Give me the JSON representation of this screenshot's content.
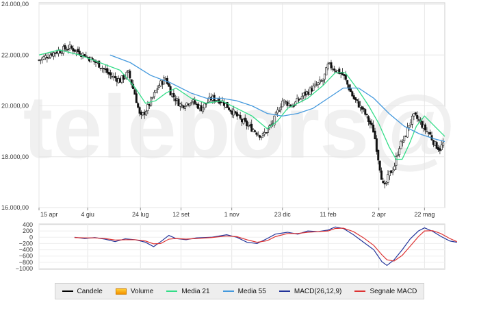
{
  "chart_data": [
    {
      "type": "candlestick",
      "panel": "price",
      "watermark": "telebors@",
      "ylim": [
        16000,
        24000
      ],
      "y_ticks": [
        16000,
        18000,
        20000,
        22000,
        24000
      ],
      "y_tick_labels": [
        "16.000,00",
        "18.000,00",
        "20.000,00",
        "22.000,00",
        "24.000,00"
      ],
      "x_range": [
        0,
        400
      ],
      "x_ticks": [
        {
          "x": 0,
          "label": "15 apr"
        },
        {
          "x": 48,
          "label": "4 giu"
        },
        {
          "x": 100,
          "label": "24 lug"
        },
        {
          "x": 140,
          "label": "12 set"
        },
        {
          "x": 190,
          "label": "1 nov"
        },
        {
          "x": 240,
          "label": "23 dic"
        },
        {
          "x": 285,
          "label": "11 feb"
        },
        {
          "x": 335,
          "label": "2 apr"
        },
        {
          "x": 380,
          "label": "22 mag"
        }
      ],
      "grid": true,
      "close_trend": [
        [
          0,
          21800
        ],
        [
          15,
          22100
        ],
        [
          30,
          22300
        ],
        [
          45,
          22000
        ],
        [
          60,
          21600
        ],
        [
          70,
          21200
        ],
        [
          80,
          21000
        ],
        [
          88,
          21300
        ],
        [
          95,
          20400
        ],
        [
          100,
          19500
        ],
        [
          108,
          20000
        ],
        [
          118,
          20800
        ],
        [
          125,
          21100
        ],
        [
          130,
          20500
        ],
        [
          140,
          20000
        ],
        [
          150,
          20200
        ],
        [
          160,
          19900
        ],
        [
          170,
          20300
        ],
        [
          180,
          20200
        ],
        [
          190,
          19800
        ],
        [
          200,
          19400
        ],
        [
          210,
          19100
        ],
        [
          220,
          18800
        ],
        [
          230,
          19300
        ],
        [
          240,
          20200
        ],
        [
          250,
          20000
        ],
        [
          260,
          20400
        ],
        [
          270,
          20700
        ],
        [
          280,
          21000
        ],
        [
          285,
          21600
        ],
        [
          290,
          21500
        ],
        [
          300,
          21200
        ],
        [
          310,
          20300
        ],
        [
          320,
          19800
        ],
        [
          330,
          19000
        ],
        [
          335,
          17800
        ],
        [
          340,
          16700
        ],
        [
          345,
          17300
        ],
        [
          350,
          17600
        ],
        [
          355,
          18400
        ],
        [
          360,
          18700
        ],
        [
          365,
          19300
        ],
        [
          370,
          19600
        ],
        [
          375,
          19400
        ],
        [
          380,
          19100
        ],
        [
          385,
          18900
        ],
        [
          390,
          18500
        ],
        [
          395,
          18300
        ],
        [
          400,
          18600
        ]
      ],
      "series": [
        {
          "name": "Media 21",
          "color": "#33dd88",
          "values": [
            [
              0,
              22000
            ],
            [
              20,
              22200
            ],
            [
              40,
              22000
            ],
            [
              60,
              21700
            ],
            [
              80,
              21400
            ],
            [
              95,
              20700
            ],
            [
              105,
              20100
            ],
            [
              115,
              20200
            ],
            [
              125,
              20500
            ],
            [
              135,
              20700
            ],
            [
              150,
              20300
            ],
            [
              165,
              20100
            ],
            [
              180,
              20200
            ],
            [
              195,
              19900
            ],
            [
              210,
              19600
            ],
            [
              225,
              19100
            ],
            [
              235,
              19400
            ],
            [
              245,
              19900
            ],
            [
              255,
              20100
            ],
            [
              265,
              20300
            ],
            [
              280,
              20800
            ],
            [
              292,
              21300
            ],
            [
              302,
              21300
            ],
            [
              315,
              20600
            ],
            [
              325,
              20000
            ],
            [
              335,
              19300
            ],
            [
              345,
              18400
            ],
            [
              352,
              17900
            ],
            [
              358,
              17900
            ],
            [
              365,
              18500
            ],
            [
              372,
              19200
            ],
            [
              380,
              19600
            ],
            [
              390,
              19200
            ],
            [
              400,
              18800
            ]
          ]
        },
        {
          "name": "Media 55",
          "color": "#4499dd",
          "values": [
            [
              70,
              22000
            ],
            [
              90,
              21700
            ],
            [
              110,
              21200
            ],
            [
              130,
              20900
            ],
            [
              150,
              20500
            ],
            [
              165,
              20300
            ],
            [
              180,
              20300
            ],
            [
              195,
              20200
            ],
            [
              210,
              20000
            ],
            [
              225,
              19700
            ],
            [
              240,
              19600
            ],
            [
              255,
              19700
            ],
            [
              270,
              19900
            ],
            [
              285,
              20300
            ],
            [
              300,
              20700
            ],
            [
              315,
              20700
            ],
            [
              330,
              20300
            ],
            [
              345,
              19700
            ],
            [
              360,
              19200
            ],
            [
              375,
              18900
            ],
            [
              390,
              18700
            ],
            [
              400,
              18600
            ]
          ]
        }
      ]
    },
    {
      "type": "line",
      "panel": "macd",
      "ylim": [
        -1000,
        400
      ],
      "y_ticks": [
        400,
        200,
        0,
        -200,
        -400,
        -600,
        -800,
        -1000
      ],
      "y_tick_labels": [
        "400",
        "200",
        "0",
        "−200",
        "−400",
        "−600",
        "−800",
        "−1000"
      ],
      "x_range": [
        0,
        400
      ],
      "grid": true,
      "series": [
        {
          "name": "MACD(26,12,9)",
          "color": "#223399",
          "values": [
            [
              35,
              0
            ],
            [
              45,
              -40
            ],
            [
              55,
              -10
            ],
            [
              65,
              -60
            ],
            [
              75,
              -140
            ],
            [
              85,
              -50
            ],
            [
              95,
              -80
            ],
            [
              105,
              -160
            ],
            [
              113,
              -300
            ],
            [
              120,
              -140
            ],
            [
              128,
              60
            ],
            [
              135,
              -40
            ],
            [
              145,
              -80
            ],
            [
              155,
              -20
            ],
            [
              170,
              0
            ],
            [
              185,
              80
            ],
            [
              195,
              0
            ],
            [
              205,
              -160
            ],
            [
              215,
              -200
            ],
            [
              225,
              -40
            ],
            [
              233,
              100
            ],
            [
              245,
              160
            ],
            [
              255,
              100
            ],
            [
              265,
              200
            ],
            [
              275,
              180
            ],
            [
              285,
              230
            ],
            [
              292,
              330
            ],
            [
              300,
              280
            ],
            [
              310,
              80
            ],
            [
              320,
              -160
            ],
            [
              330,
              -400
            ],
            [
              338,
              -780
            ],
            [
              343,
              -900
            ],
            [
              350,
              -720
            ],
            [
              358,
              -400
            ],
            [
              366,
              -50
            ],
            [
              374,
              200
            ],
            [
              380,
              300
            ],
            [
              388,
              190
            ],
            [
              396,
              30
            ],
            [
              405,
              -120
            ],
            [
              412,
              -160
            ]
          ]
        },
        {
          "name": "Segnale MACD",
          "color": "#dd3333",
          "values": [
            [
              35,
              -10
            ],
            [
              45,
              -20
            ],
            [
              55,
              -20
            ],
            [
              65,
              -40
            ],
            [
              75,
              -90
            ],
            [
              85,
              -80
            ],
            [
              95,
              -80
            ],
            [
              105,
              -120
            ],
            [
              113,
              -210
            ],
            [
              120,
              -200
            ],
            [
              128,
              -60
            ],
            [
              135,
              -40
            ],
            [
              145,
              -60
            ],
            [
              155,
              -40
            ],
            [
              170,
              -10
            ],
            [
              185,
              40
            ],
            [
              195,
              20
            ],
            [
              205,
              -80
            ],
            [
              215,
              -160
            ],
            [
              225,
              -110
            ],
            [
              233,
              20
            ],
            [
              245,
              120
            ],
            [
              255,
              120
            ],
            [
              265,
              160
            ],
            [
              275,
              180
            ],
            [
              285,
              200
            ],
            [
              292,
              280
            ],
            [
              300,
              290
            ],
            [
              310,
              180
            ],
            [
              320,
              -20
            ],
            [
              330,
              -260
            ],
            [
              338,
              -560
            ],
            [
              343,
              -720
            ],
            [
              350,
              -760
            ],
            [
              358,
              -580
            ],
            [
              366,
              -280
            ],
            [
              374,
              20
            ],
            [
              380,
              200
            ],
            [
              388,
              210
            ],
            [
              396,
              120
            ],
            [
              405,
              -40
            ],
            [
              412,
              -140
            ]
          ]
        }
      ]
    }
  ],
  "legend": [
    {
      "label": "Candele",
      "kind": "line",
      "color": "#000000"
    },
    {
      "label": "Volume",
      "kind": "box",
      "color": "#f5a623"
    },
    {
      "label": "Media 21",
      "kind": "line",
      "color": "#33dd88"
    },
    {
      "label": "Media 55",
      "kind": "line",
      "color": "#4499dd"
    },
    {
      "label": "MACD(26,12,9)",
      "kind": "line",
      "color": "#223399"
    },
    {
      "label": "Segnale MACD",
      "kind": "line",
      "color": "#dd3333"
    }
  ]
}
